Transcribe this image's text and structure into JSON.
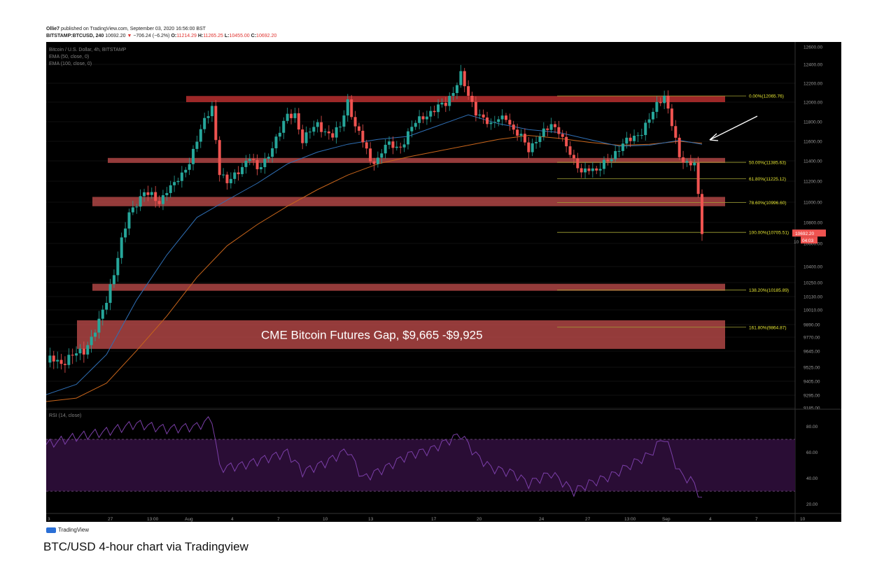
{
  "header": {
    "author": "Ollie7",
    "published_text": "published on TradingView.com, September 03, 2020 16:56:00 BST",
    "symbol": "BITSTAMP:BTCUSD, 240",
    "last": "10692.20",
    "change": "−706.24 (−6.2%)",
    "o_label": "O:",
    "o_value": "11214.29",
    "h_label": "H:",
    "h_value": "11265.25",
    "l_label": "L:",
    "l_value": "10455.00",
    "c_label": "C:",
    "c_value": "10692.20"
  },
  "legend": {
    "title": "Bitcoin / U.S. Dollar, 4h, BITSTAMP",
    "ema50": "EMA (50, close, 0)",
    "ema100": "EMA (100, close, 0)",
    "rsi": "RSI (14, close)"
  },
  "colors": {
    "background": "#000000",
    "candle_up": "#26a69a",
    "candle_down": "#ef5350",
    "zone": "#b94a48",
    "zone_strong": "#a52a2a",
    "ema50": "#2f6fb5",
    "ema100": "#c8651b",
    "fib": "#a3a335",
    "rsi_line": "#7b3fa8",
    "rsi_band": "#2a0d35",
    "arrow": "#ffffff"
  },
  "footer": {
    "logo_text": "TradingView",
    "caption": "BTC/USD 4-hour chart via Tradingview"
  },
  "chart_data": [
    {
      "type": "candlestick",
      "price_axis": {
        "ticks": [
          "12600.00",
          "12400.00",
          "12200.00",
          "12000.00",
          "11800.00",
          "11600.00",
          "11400.00",
          "11200.00",
          "11000.00",
          "10800.00",
          "10600.00",
          "10400.00",
          "10250.00",
          "10130.00",
          "10010.00",
          "9890.00",
          "9770.00",
          "9645.00",
          "9525.00",
          "9405.00",
          "9295.00",
          "9185.00"
        ],
        "ylim": [
          9185,
          12600
        ]
      },
      "time_axis": {
        "ticks": [
          "3",
          "27",
          "13:00",
          "Aug",
          "4",
          "7",
          "10",
          "13",
          "17",
          "20",
          "24",
          "27",
          "13:00",
          "Sep",
          "4",
          "7",
          "10"
        ]
      },
      "last_price_label": "10692.20",
      "countdown_label": "04:03",
      "partial_axis_label": "10",
      "fib_levels": [
        {
          "label": "0.00%(12065.76)",
          "price": 12065.76
        },
        {
          "label": "50.00%(11385.63)",
          "price": 11385.63
        },
        {
          "label": "61.80%(11225.12)",
          "price": 11225.12
        },
        {
          "label": "78.60%(10996.60)",
          "price": 10996.6
        },
        {
          "label": "100.00%(10705.51)",
          "price": 10705.51
        },
        {
          "label": "138.20%(10185.89)",
          "price": 10185.89
        },
        {
          "label": "161.80%(9864.87)",
          "price": 9864.87
        }
      ],
      "zones": [
        {
          "from": 12000,
          "to": 12065
        },
        {
          "from": 11380,
          "to": 11430
        },
        {
          "from": 10960,
          "to": 11050
        },
        {
          "from": 10180,
          "to": 10240
        },
        {
          "from": 9665,
          "to": 9925,
          "label": "CME Bitcoin Futures Gap, $9,665 -$9,925"
        }
      ],
      "price_path": [
        [
          0,
          9560
        ],
        [
          2,
          9600
        ],
        [
          4,
          9560
        ],
        [
          6,
          9580
        ],
        [
          8,
          9630
        ],
        [
          10,
          9660
        ],
        [
          12,
          9760
        ],
        [
          14,
          9900
        ],
        [
          16,
          10100
        ],
        [
          18,
          10350
        ],
        [
          20,
          10620
        ],
        [
          22,
          10880
        ],
        [
          24,
          11000
        ],
        [
          26,
          11100
        ],
        [
          28,
          11050
        ],
        [
          30,
          10990
        ],
        [
          32,
          11130
        ],
        [
          34,
          11170
        ],
        [
          36,
          11250
        ],
        [
          38,
          11400
        ],
        [
          40,
          11620
        ],
        [
          42,
          11800
        ],
        [
          44,
          11950
        ],
        [
          46,
          11300
        ],
        [
          48,
          11180
        ],
        [
          50,
          11250
        ],
        [
          52,
          11350
        ],
        [
          54,
          11450
        ],
        [
          56,
          11300
        ],
        [
          58,
          11400
        ],
        [
          60,
          11550
        ],
        [
          62,
          11700
        ],
        [
          64,
          11860
        ],
        [
          66,
          11880
        ],
        [
          68,
          11600
        ],
        [
          70,
          11700
        ],
        [
          72,
          11780
        ],
        [
          74,
          11700
        ],
        [
          76,
          11650
        ],
        [
          78,
          11750
        ],
        [
          80,
          12020
        ],
        [
          82,
          11750
        ],
        [
          84,
          11600
        ],
        [
          86,
          11400
        ],
        [
          88,
          11420
        ],
        [
          90,
          11560
        ],
        [
          92,
          11550
        ],
        [
          94,
          11540
        ],
        [
          96,
          11680
        ],
        [
          98,
          11790
        ],
        [
          100,
          11850
        ],
        [
          102,
          11900
        ],
        [
          104,
          11950
        ],
        [
          106,
          11980
        ],
        [
          108,
          12120
        ],
        [
          110,
          12300
        ],
        [
          112,
          12050
        ],
        [
          114,
          11900
        ],
        [
          116,
          11850
        ],
        [
          118,
          11750
        ],
        [
          120,
          11830
        ],
        [
          122,
          11860
        ],
        [
          124,
          11700
        ],
        [
          126,
          11640
        ],
        [
          128,
          11520
        ],
        [
          130,
          11620
        ],
        [
          132,
          11690
        ],
        [
          134,
          11760
        ],
        [
          136,
          11720
        ],
        [
          138,
          11550
        ],
        [
          140,
          11380
        ],
        [
          142,
          11300
        ],
        [
          144,
          11340
        ],
        [
          146,
          11280
        ],
        [
          148,
          11380
        ],
        [
          150,
          11450
        ],
        [
          152,
          11520
        ],
        [
          154,
          11600
        ],
        [
          156,
          11650
        ],
        [
          158,
          11700
        ],
        [
          160,
          11820
        ],
        [
          162,
          11970
        ],
        [
          164,
          12080
        ],
        [
          166,
          11780
        ],
        [
          168,
          11420
        ],
        [
          170,
          11380
        ],
        [
          172,
          11400
        ],
        [
          174,
          10700
        ]
      ],
      "ema50": [
        [
          0,
          9300
        ],
        [
          8,
          9380
        ],
        [
          16,
          9620
        ],
        [
          24,
          10100
        ],
        [
          32,
          10500
        ],
        [
          40,
          10850
        ],
        [
          48,
          11020
        ],
        [
          56,
          11180
        ],
        [
          64,
          11370
        ],
        [
          72,
          11490
        ],
        [
          80,
          11570
        ],
        [
          88,
          11620
        ],
        [
          96,
          11650
        ],
        [
          104,
          11760
        ],
        [
          112,
          11870
        ],
        [
          120,
          11780
        ],
        [
          128,
          11720
        ],
        [
          136,
          11690
        ],
        [
          144,
          11620
        ],
        [
          152,
          11550
        ],
        [
          160,
          11560
        ],
        [
          168,
          11610
        ],
        [
          174,
          11570
        ]
      ],
      "ema100": [
        [
          0,
          9240
        ],
        [
          8,
          9270
        ],
        [
          16,
          9390
        ],
        [
          24,
          9650
        ],
        [
          32,
          9960
        ],
        [
          40,
          10300
        ],
        [
          48,
          10580
        ],
        [
          56,
          10780
        ],
        [
          64,
          10960
        ],
        [
          72,
          11120
        ],
        [
          80,
          11260
        ],
        [
          88,
          11370
        ],
        [
          96,
          11440
        ],
        [
          104,
          11500
        ],
        [
          112,
          11560
        ],
        [
          120,
          11620
        ],
        [
          128,
          11660
        ],
        [
          136,
          11630
        ],
        [
          144,
          11590
        ],
        [
          152,
          11560
        ],
        [
          160,
          11570
        ],
        [
          168,
          11600
        ],
        [
          174,
          11580
        ]
      ]
    },
    {
      "type": "line",
      "title": "RSI (14, close)",
      "ylim": [
        15,
        90
      ],
      "y_ticks": [
        "80.00",
        "60.00",
        "40.00",
        "20.00"
      ],
      "band": [
        30,
        70
      ],
      "values": [
        [
          0,
          66
        ],
        [
          8,
          72
        ],
        [
          16,
          76
        ],
        [
          24,
          82
        ],
        [
          32,
          78
        ],
        [
          40,
          80
        ],
        [
          44,
          86
        ],
        [
          46,
          48
        ],
        [
          52,
          50
        ],
        [
          58,
          55
        ],
        [
          64,
          60
        ],
        [
          68,
          45
        ],
        [
          74,
          52
        ],
        [
          80,
          62
        ],
        [
          84,
          40
        ],
        [
          90,
          48
        ],
        [
          96,
          58
        ],
        [
          102,
          62
        ],
        [
          110,
          74
        ],
        [
          114,
          58
        ],
        [
          118,
          48
        ],
        [
          124,
          44
        ],
        [
          128,
          36
        ],
        [
          134,
          44
        ],
        [
          140,
          30
        ],
        [
          144,
          36
        ],
        [
          150,
          42
        ],
        [
          156,
          52
        ],
        [
          160,
          58
        ],
        [
          164,
          72
        ],
        [
          168,
          44
        ],
        [
          172,
          36
        ],
        [
          174,
          22
        ]
      ]
    }
  ]
}
